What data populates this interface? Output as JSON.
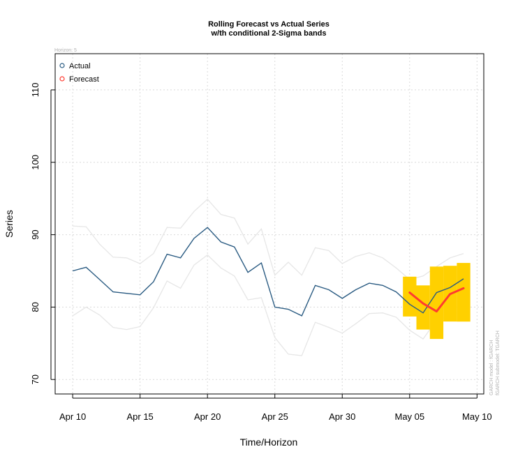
{
  "chart_data": {
    "type": "line",
    "title": "Rolling Forecast vs Actual Series",
    "subtitle": "w/th conditional 2-Sigma bands",
    "horizon_label": "Horizon: 5",
    "xlabel": "Time/Horizon",
    "ylabel": "Series",
    "x_ticks": [
      "Apr 10",
      "Apr 15",
      "Apr 20",
      "Apr 25",
      "Apr 30",
      "May 05",
      "May 10"
    ],
    "y_ticks": [
      70,
      80,
      90,
      100,
      110
    ],
    "ylim": [
      68,
      115
    ],
    "xlim": [
      "Apr 08.7",
      "May 10.5"
    ],
    "grid": true,
    "legend_position": "top-left",
    "side_note": [
      "GARCH model : fGARCH",
      "fGARCH submodel: TGARCH"
    ],
    "series": [
      {
        "name": "Actual",
        "color": "#2a5b82",
        "x": [
          "Apr 10",
          "Apr 11",
          "Apr 12",
          "Apr 13",
          "Apr 14",
          "Apr 15",
          "Apr 16",
          "Apr 17",
          "Apr 18",
          "Apr 19",
          "Apr 20",
          "Apr 21",
          "Apr 22",
          "Apr 23",
          "Apr 24",
          "Apr 25",
          "Apr 26",
          "Apr 27",
          "Apr 28",
          "Apr 29",
          "Apr 30",
          "May 01",
          "May 02",
          "May 03",
          "May 04",
          "May 05",
          "May 06",
          "May 07",
          "May 08",
          "May 09"
        ],
        "values": [
          85.0,
          85.5,
          83.8,
          82.1,
          81.9,
          81.7,
          83.5,
          87.3,
          86.8,
          89.5,
          91.0,
          89.0,
          88.3,
          84.8,
          86.1,
          80.0,
          79.7,
          78.8,
          83.0,
          82.4,
          81.2,
          82.4,
          83.3,
          83.0,
          82.1,
          80.4,
          79.2,
          82.0,
          82.7,
          83.9
        ]
      },
      {
        "name": "Forecast",
        "color": "#ff3b30",
        "x": [
          "May 05",
          "May 06",
          "May 07",
          "May 08",
          "May 09"
        ],
        "values": [
          82.0,
          80.5,
          79.4,
          81.8,
          82.6
        ]
      }
    ],
    "bands": {
      "color": "#e6e6e6",
      "x": [
        "Apr 10",
        "Apr 11",
        "Apr 12",
        "Apr 13",
        "Apr 14",
        "Apr 15",
        "Apr 16",
        "Apr 17",
        "Apr 18",
        "Apr 19",
        "Apr 20",
        "Apr 21",
        "Apr 22",
        "Apr 23",
        "Apr 24",
        "Apr 25",
        "Apr 26",
        "Apr 27",
        "Apr 28",
        "Apr 29",
        "Apr 30",
        "May 01",
        "May 02",
        "May 03",
        "May 04",
        "May 05",
        "May 06",
        "May 07",
        "May 08",
        "May 09"
      ],
      "upper": [
        91.2,
        91.1,
        88.7,
        86.9,
        86.8,
        86.0,
        87.4,
        91.0,
        90.9,
        93.2,
        94.9,
        92.8,
        92.3,
        88.7,
        90.8,
        84.4,
        86.2,
        84.4,
        88.2,
        87.8,
        86.0,
        87.0,
        87.5,
        86.8,
        85.4,
        83.8,
        84.3,
        85.6,
        86.8,
        87.4
      ],
      "lower": [
        78.8,
        80.0,
        78.9,
        77.2,
        76.9,
        77.3,
        79.9,
        83.6,
        82.6,
        85.8,
        87.2,
        85.4,
        84.3,
        81.0,
        81.3,
        75.8,
        73.5,
        73.3,
        77.9,
        77.2,
        76.4,
        77.7,
        79.1,
        79.2,
        78.6,
        76.8,
        75.6,
        78.2,
        78.8,
        79.6
      ]
    },
    "forecast_bands": {
      "color": "#ffd000",
      "x": [
        "May 05",
        "May 06",
        "May 07",
        "May 08",
        "May 09"
      ],
      "upper": [
        84.2,
        83.0,
        85.6,
        85.7,
        86.1
      ],
      "lower": [
        78.7,
        76.9,
        75.6,
        78.0,
        78.0
      ]
    }
  }
}
